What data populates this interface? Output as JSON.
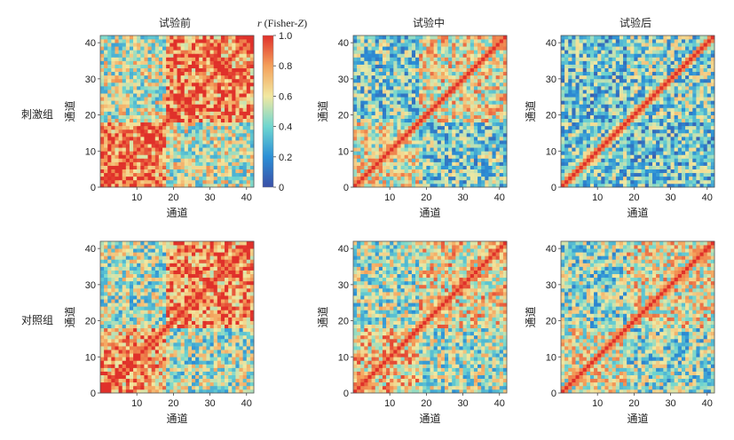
{
  "chart_data": {
    "type": "heatmap",
    "colorbar": {
      "label_var": "r",
      "label_rest": " (Fisher-",
      "label_z": "Z",
      "label_close": ")",
      "ticks": [
        "0",
        "0.2",
        "0.4",
        "0.6",
        "0.8",
        "1.0"
      ],
      "tick_values": [
        0,
        0.2,
        0.4,
        0.6,
        0.8,
        1.0
      ],
      "range": [
        0,
        1.0
      ],
      "colors": [
        "#3a4fa6",
        "#2b8fd6",
        "#6fd6d0",
        "#f2e8a0",
        "#f4a05a",
        "#e0302a"
      ]
    },
    "columns": [
      "试验前",
      "试验中",
      "试验后"
    ],
    "rows": [
      "刺激组",
      "对照组"
    ],
    "xlabel": "通道",
    "ylabel": "通道",
    "x_ticks": [
      "10",
      "20",
      "30",
      "40"
    ],
    "x_tick_values": [
      10,
      20,
      30,
      40
    ],
    "y_ticks": [
      "0",
      "10",
      "20",
      "30",
      "40"
    ],
    "y_tick_values": [
      0,
      10,
      20,
      30,
      40
    ],
    "axis_range": [
      0,
      42
    ],
    "n_channels": 42,
    "diagonal_value": 1.0,
    "panels": [
      {
        "row": "刺激组",
        "column": "试验前",
        "blocks": [
          {
            "range": [
              0,
              18
            ],
            "mean_r": 0.85
          },
          {
            "range": [
              19,
              42
            ],
            "mean_r": 0.82
          },
          {
            "range": [
              0,
              18,
              19,
              42
            ],
            "mean_r": 0.55
          }
        ]
      },
      {
        "row": "刺激组",
        "column": "试验中",
        "blocks": [
          {
            "range": [
              0,
              18
            ],
            "mean_r": 0.6
          },
          {
            "range": [
              19,
              42
            ],
            "mean_r": 0.62
          },
          {
            "range": [
              0,
              18,
              19,
              42
            ],
            "mean_r": 0.4
          }
        ]
      },
      {
        "row": "刺激组",
        "column": "试验后",
        "blocks": [
          {
            "range": [
              0,
              18
            ],
            "mean_r": 0.4
          },
          {
            "range": [
              19,
              42
            ],
            "mean_r": 0.42
          },
          {
            "range": [
              0,
              18,
              19,
              42
            ],
            "mean_r": 0.35
          }
        ]
      },
      {
        "row": "对照组",
        "column": "试验前",
        "blocks": [
          {
            "range": [
              0,
              18
            ],
            "mean_r": 0.78
          },
          {
            "range": [
              19,
              42
            ],
            "mean_r": 0.8
          },
          {
            "range": [
              0,
              18,
              19,
              42
            ],
            "mean_r": 0.5
          }
        ]
      },
      {
        "row": "对照组",
        "column": "试验中",
        "blocks": [
          {
            "range": [
              0,
              18
            ],
            "mean_r": 0.68
          },
          {
            "range": [
              19,
              42
            ],
            "mean_r": 0.65
          },
          {
            "range": [
              0,
              18,
              19,
              42
            ],
            "mean_r": 0.5
          }
        ]
      },
      {
        "row": "对照组",
        "column": "试验后",
        "blocks": [
          {
            "range": [
              0,
              18
            ],
            "mean_r": 0.6
          },
          {
            "range": [
              19,
              42
            ],
            "mean_r": 0.62
          },
          {
            "range": [
              0,
              18,
              19,
              42
            ],
            "mean_r": 0.45
          }
        ]
      }
    ]
  }
}
